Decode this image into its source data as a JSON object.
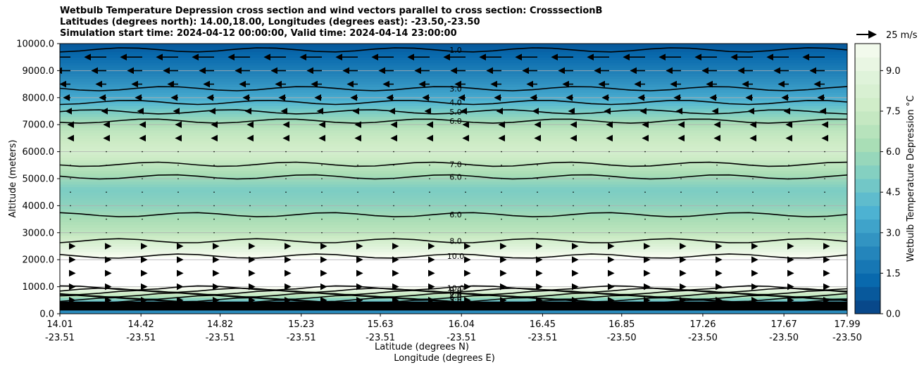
{
  "chart_data": {
    "type": "heatmap",
    "title_lines": [
      "Wetbulb Temperature Depression cross section and wind vectors parallel to cross section: CrosssectionB",
      "Latitudes (degrees north): 14.00,18.00, Longitudes (degrees east): -23.50,-23.50",
      "Simulation start time: 2024-04-12 00:00:00, Valid time: 2024-04-14 23:00:00"
    ],
    "ylabel": "Altitude (meters)",
    "xlabel": "Latitude (degrees N)",
    "xlabel2": "Longitude (degrees E)",
    "ylim": [
      0,
      10000
    ],
    "y_ticks": [
      "0.0",
      "1000.0",
      "2000.0",
      "3000.0",
      "4000.0",
      "5000.0",
      "6000.0",
      "7000.0",
      "8000.0",
      "9000.0",
      "10000.0"
    ],
    "x_ticks_lat": [
      "14.01",
      "14.42",
      "14.82",
      "15.23",
      "15.63",
      "16.04",
      "16.45",
      "16.85",
      "17.26",
      "17.67",
      "17.99"
    ],
    "x_ticks_lon": [
      "-23.51",
      "-23.51",
      "-23.51",
      "-23.51",
      "-23.51",
      "-23.51",
      "-23.51",
      "-23.50",
      "-23.50",
      "-23.50",
      "-23.50"
    ],
    "colorbar": {
      "label": "Wetbulb Temperature Depression °C",
      "range": [
        0,
        10
      ],
      "ticks": [
        "0.0",
        "1.5",
        "3.0",
        "4.5",
        "6.0",
        "7.5",
        "9.0"
      ],
      "colormap": "GnBu_r"
    },
    "wind_key": "25 m/s",
    "grid": "horizontal",
    "contour_labels": [
      "1.0",
      "2.0",
      "3.0",
      "4.0",
      "5.0",
      "6.0",
      "7.0",
      "8.0",
      "9.0",
      "10.0"
    ],
    "contour_levels": [
      1,
      2,
      3,
      4,
      5,
      6,
      7,
      8,
      9,
      10
    ],
    "wbd_profile_by_altitude": [
      {
        "altitude": 300,
        "value": 2.5
      },
      {
        "altitude": 1000,
        "value": 10.5
      },
      {
        "altitude": 2000,
        "value": 10.5
      },
      {
        "altitude": 2400,
        "value": 9.0
      },
      {
        "altitude": 3000,
        "value": 7.0
      },
      {
        "altitude": 4000,
        "value": 5.5
      },
      {
        "altitude": 4600,
        "value": 5.0
      },
      {
        "altitude": 5300,
        "value": 6.5
      },
      {
        "altitude": 6000,
        "value": 8.0
      },
      {
        "altitude": 6800,
        "value": 7.0
      },
      {
        "altitude": 7300,
        "value": 5.5
      },
      {
        "altitude": 8000,
        "value": 3.5
      },
      {
        "altitude": 9000,
        "value": 2.0
      },
      {
        "altitude": 10000,
        "value": 0.7
      }
    ]
  }
}
